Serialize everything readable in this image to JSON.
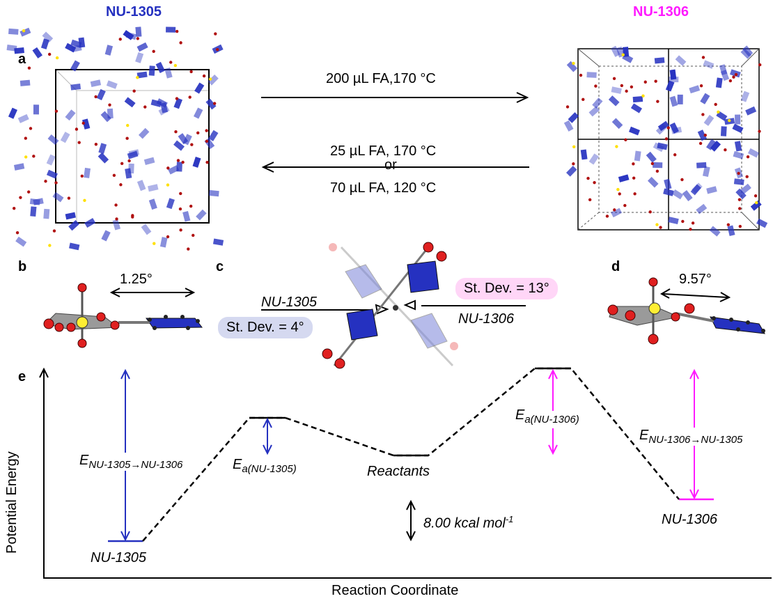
{
  "top": {
    "title_left": "NU-1305",
    "title_right": "NU-1306",
    "color_left": "#2531c0",
    "color_right": "#ff1aff",
    "panel_a": "a",
    "forward_condition": "200 µL FA,170 °C",
    "reverse_condition_1": "25 µL FA, 170 °C",
    "reverse_or": "or",
    "reverse_condition_2": "70 µL FA, 120 °C"
  },
  "middle": {
    "panel_b": "b",
    "panel_c": "c",
    "panel_d": "d",
    "angle_b": "1.25°",
    "angle_d": "9.57°",
    "label_left": "NU-1305",
    "label_right": "NU-1306",
    "stdev_left": "St. Dev. = 4°",
    "stdev_right": "St. Dev. = 13°",
    "stdev_left_bg": "#d5d9f0",
    "stdev_right_bg": "#ffd6f7"
  },
  "energy": {
    "panel_e": "e",
    "y_axis_label": "Potential Energy",
    "x_axis_label": "Reaction Coordinate",
    "state_left": "NU-1305",
    "state_mid": "Reactants",
    "state_right": "NU-1306",
    "gap_label": "8.00 kcal mol",
    "gap_sup": "-1",
    "ea_left_main": "E",
    "ea_left_sub": "a(NU-1305)",
    "ea_right_main": "E",
    "ea_right_sub": "a(NU-1306)",
    "e_left_main": "E",
    "e_left_sub": "NU-1305→NU-1306",
    "e_right_main": "E",
    "e_right_sub": "NU-1306→NU-1305"
  }
}
